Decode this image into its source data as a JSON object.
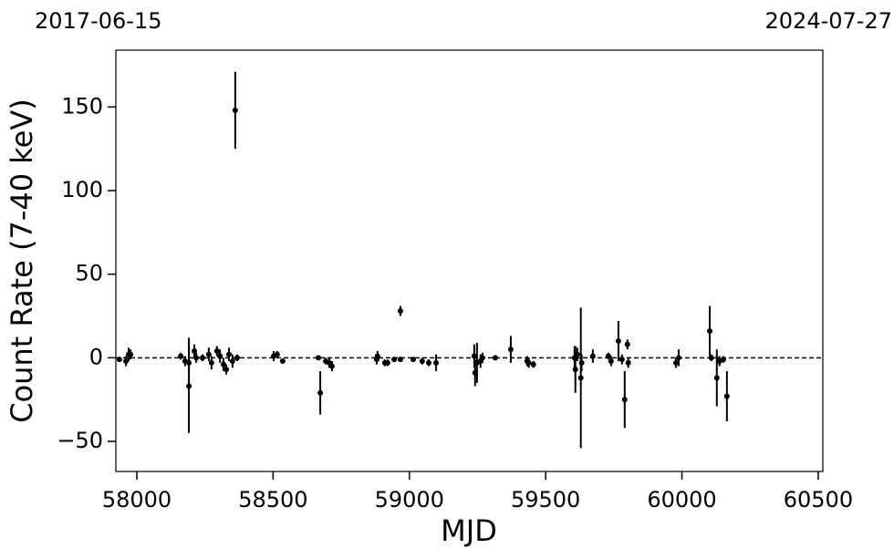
{
  "chart_data": {
    "type": "errorbar-scatter",
    "top_labels": [
      "2017-06-15",
      "2024-07-27"
    ],
    "xlabel": "MJD",
    "ylabel": "Count Rate (7-40 keV)",
    "color": "#000000",
    "hline": 0,
    "xlim": [
      57923,
      60517
    ],
    "ylim": [
      -68,
      184
    ],
    "xticks": [
      58000,
      58500,
      59000,
      59500,
      60000,
      60500
    ],
    "yticks": [
      {
        "value": -50,
        "label": "−50"
      },
      0,
      50,
      100,
      150
    ],
    "x": [
      57936,
      57960,
      57970,
      57977,
      58161,
      58177,
      58191,
      58191,
      58211,
      58218,
      58241,
      58264,
      58274,
      58294,
      58305,
      58318,
      58328,
      58338,
      58351,
      58361,
      58368,
      58502,
      58515,
      58535,
      58666,
      58673,
      58693,
      58706,
      58716,
      58880,
      58883,
      58910,
      58920,
      58944,
      58967,
      58967,
      59014,
      59047,
      59071,
      59098,
      59238,
      59241,
      59248,
      59261,
      59268,
      59315,
      59372,
      59432,
      59438,
      59455,
      59606,
      59609,
      59616,
      59629,
      59632,
      59673,
      59730,
      59740,
      59767,
      59780,
      59790,
      59800,
      59803,
      59978,
      59988,
      60102,
      60108,
      60128,
      60138,
      60152,
      60165
    ],
    "values": [
      -1,
      -2,
      2,
      2,
      1,
      -2,
      -17,
      -3,
      4,
      0,
      0,
      2,
      -3,
      4,
      1,
      -4,
      -7,
      2,
      -2,
      148,
      0,
      1,
      2,
      -2,
      0,
      -21,
      -2,
      -3,
      -5,
      -1,
      1,
      -3,
      -3,
      -1,
      28,
      -1,
      -1,
      -2,
      -3,
      -3,
      1,
      -9,
      -3,
      -2,
      0,
      0,
      5,
      -2,
      -3,
      -4,
      0,
      -7,
      2,
      -12,
      -3,
      1,
      1,
      -2,
      10,
      -1,
      -25,
      8,
      -3,
      -3,
      0,
      16,
      0,
      -12,
      -2,
      -1,
      -23
    ],
    "errors": [
      1,
      3,
      4,
      3,
      2,
      3,
      28,
      15,
      4,
      3,
      2,
      4,
      4,
      3,
      4,
      4,
      3,
      4,
      4,
      23,
      2,
      3,
      2,
      1,
      1,
      13,
      2,
      3,
      3,
      3,
      3,
      2,
      2,
      1,
      3,
      1,
      1,
      2,
      2,
      5,
      7,
      8,
      12,
      4,
      3,
      1,
      8,
      3,
      3,
      2,
      7,
      14,
      4,
      42,
      5,
      4,
      2,
      3,
      12,
      3,
      17,
      3,
      3,
      3,
      5,
      15,
      2,
      17,
      3,
      2,
      15
    ]
  }
}
